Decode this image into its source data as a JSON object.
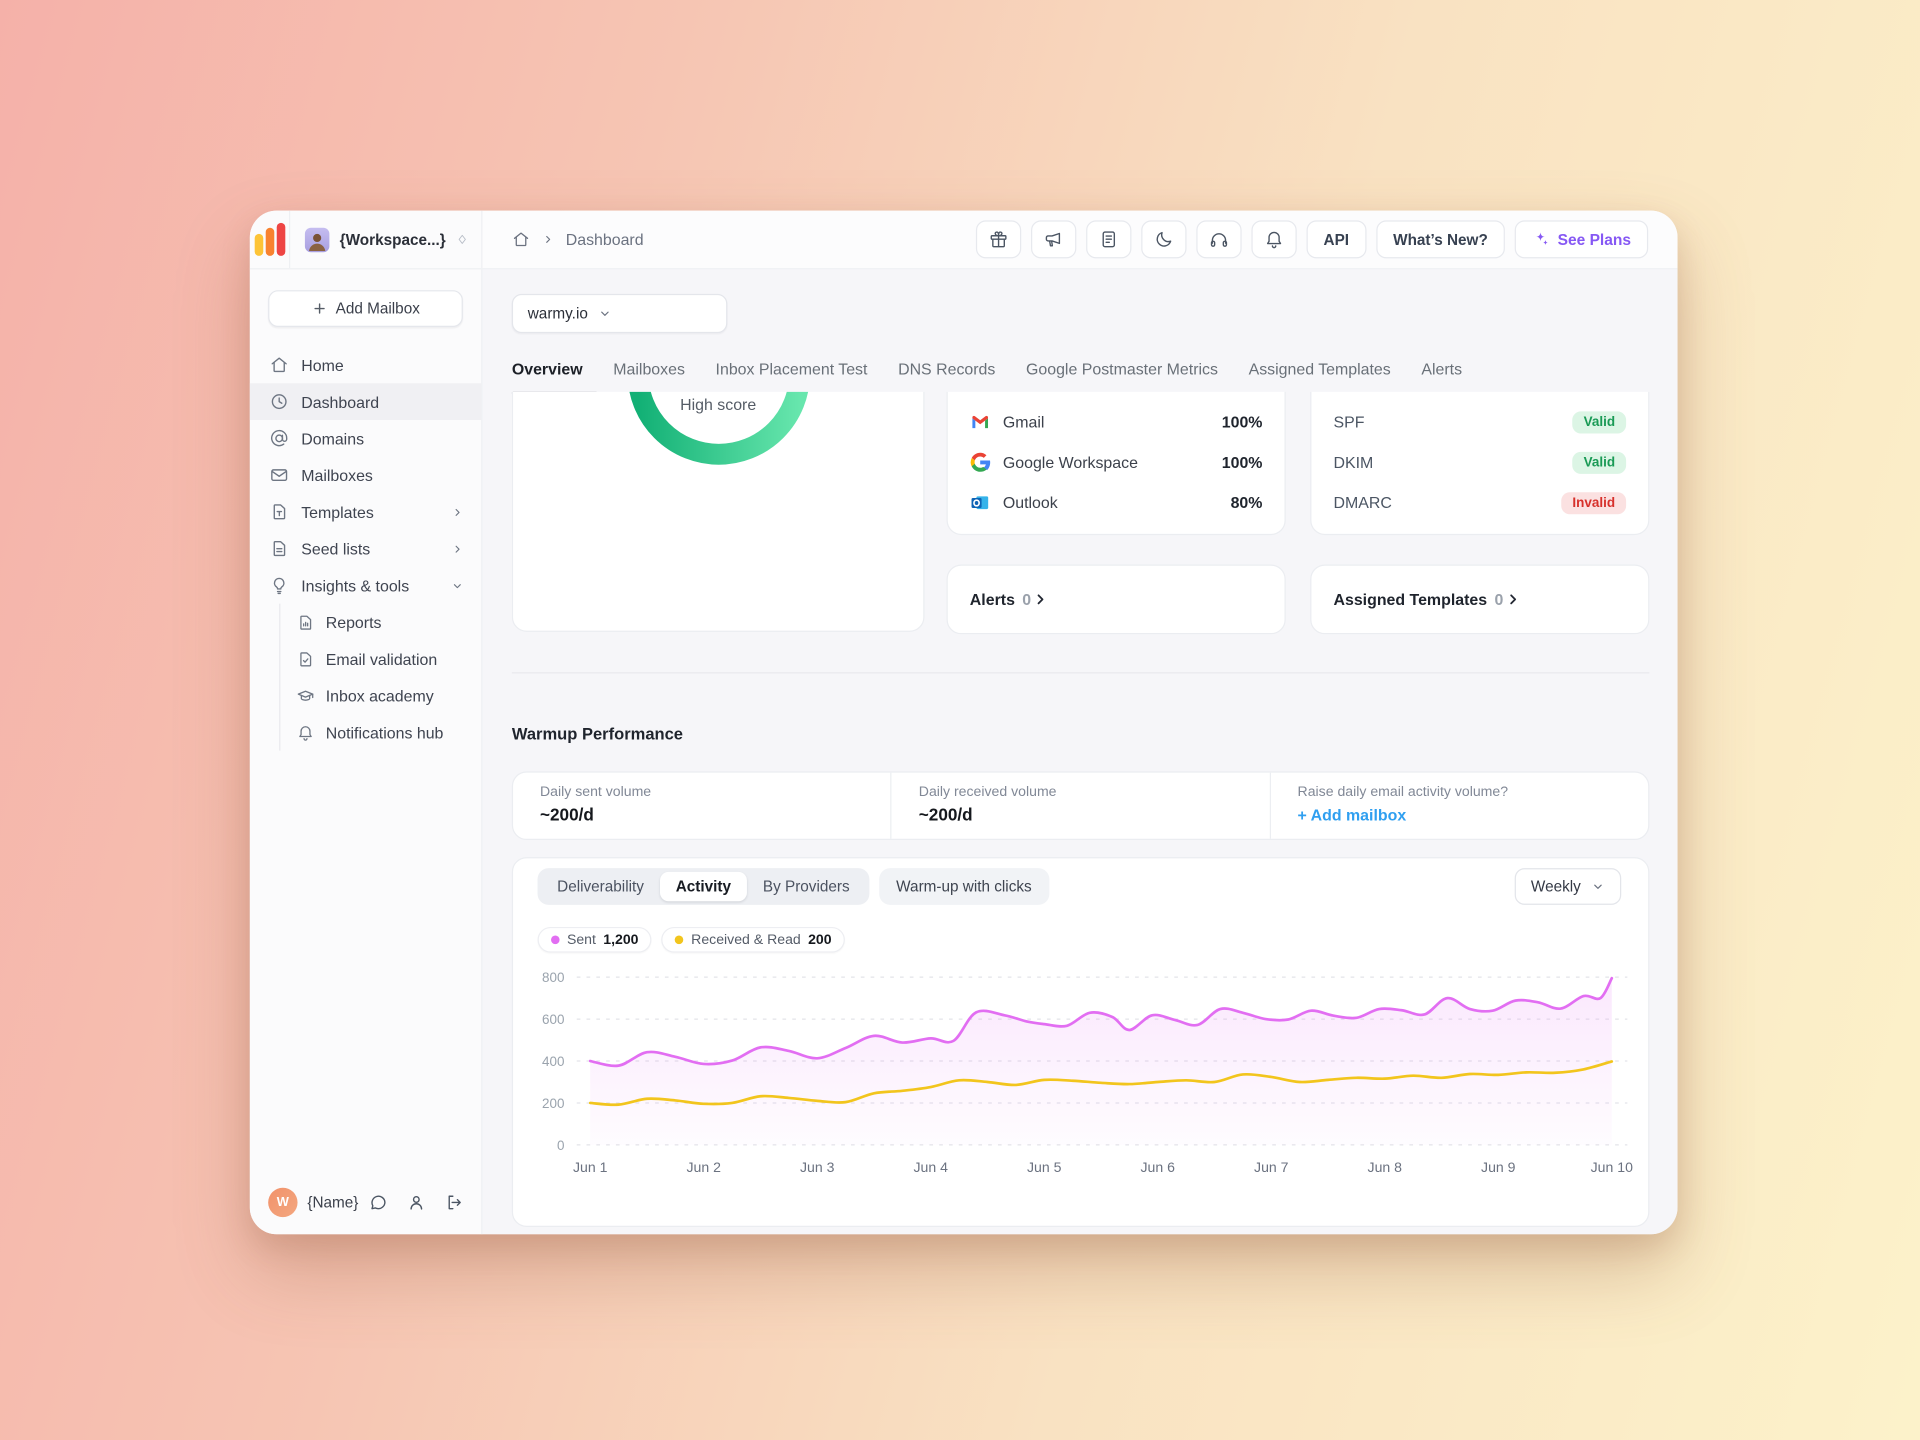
{
  "workspace": {
    "label": "{Workspace...}"
  },
  "header": {
    "breadcrumb_current": "Dashboard",
    "icon_buttons": [
      {
        "icon": "gift-icon",
        "name": "rewards-button"
      },
      {
        "icon": "megaphone-icon",
        "name": "announcements-button"
      },
      {
        "icon": "docs-icon",
        "name": "documentation-button"
      },
      {
        "icon": "moon-icon",
        "name": "dark-mode-button"
      },
      {
        "icon": "headphones-icon",
        "name": "support-button"
      },
      {
        "icon": "bell-icon",
        "name": "notifications-button"
      }
    ],
    "api_label": "API",
    "whats_new_label": "What’s New?",
    "see_plans_label": "See Plans"
  },
  "sidebar": {
    "add_mailbox_label": "Add Mailbox",
    "items": [
      {
        "label": "Home",
        "icon": "home-icon",
        "active": false,
        "chevron": null
      },
      {
        "label": "Dashboard",
        "icon": "dashboard-icon",
        "active": true,
        "chevron": null
      },
      {
        "label": "Domains",
        "icon": "at-sign-icon",
        "active": false,
        "chevron": null
      },
      {
        "label": "Mailboxes",
        "icon": "envelope-icon",
        "active": false,
        "chevron": null
      },
      {
        "label": "Templates",
        "icon": "template-file-icon",
        "active": false,
        "chevron": "right"
      },
      {
        "label": "Seed lists",
        "icon": "list-file-icon",
        "active": false,
        "chevron": "right"
      },
      {
        "label": "Insights & tools",
        "icon": "lightbulb-icon",
        "active": false,
        "chevron": "down"
      }
    ],
    "sub_items": [
      {
        "label": "Reports",
        "icon": "report-file-icon"
      },
      {
        "label": "Email validation",
        "icon": "check-file-icon"
      },
      {
        "label": "Inbox academy",
        "icon": "graduation-cap-icon"
      },
      {
        "label": "Notifications hub",
        "icon": "bell-icon"
      }
    ],
    "user": {
      "initial": "W",
      "name": "{Name}"
    }
  },
  "main": {
    "domain_select_value": "warmy.io",
    "tabs": [
      "Overview",
      "Mailboxes",
      "Inbox Placement Test",
      "DNS Records",
      "Google Postmaster Metrics",
      "Assigned Templates",
      "Alerts"
    ],
    "active_tab": "Overview",
    "score_label": "High score",
    "providers": [
      {
        "name": "Gmail",
        "icon": "gmail-icon",
        "score": "100%"
      },
      {
        "name": "Google Workspace",
        "icon": "google-icon",
        "score": "100%"
      },
      {
        "name": "Outlook",
        "icon": "outlook-icon",
        "score": "80%"
      }
    ],
    "dns_records": [
      {
        "name": "SPF",
        "status": "Valid"
      },
      {
        "name": "DKIM",
        "status": "Valid"
      },
      {
        "name": "DMARC",
        "status": "Invalid"
      }
    ],
    "alerts_card": {
      "title": "Alerts",
      "count": "0"
    },
    "templates_card": {
      "title": "Assigned Templates",
      "count": "0"
    },
    "warmup": {
      "title": "Warmup Performance",
      "stats": [
        {
          "label": "Daily sent volume",
          "value": "~200/d",
          "link": null
        },
        {
          "label": "Daily received volume",
          "value": "~200/d",
          "link": null
        },
        {
          "label": "Raise daily email activity volume?",
          "value": null,
          "link": "+ Add mailbox"
        }
      ],
      "chart_tabs": [
        "Deliverability",
        "Activity",
        "By Providers"
      ],
      "active_chart_tab": "Activity",
      "extra_chart_tab": "Warm-up with clicks",
      "period": "Weekly",
      "legend": [
        {
          "label": "Sent",
          "value": "1,200",
          "color": "#E26EF2"
        },
        {
          "label": "Received & Read",
          "value": "200",
          "color": "#F2C51D"
        }
      ]
    }
  },
  "colors": {
    "accent_purple": "#8658F4",
    "link_blue": "#2F9FF0",
    "valid_green": "#199A55",
    "invalid_red": "#D7302B",
    "gauge_green_dark": "#12B075",
    "gauge_green_light": "#67E6AD",
    "sent_pink": "#E26EF2",
    "received_yellow": "#F2C51D",
    "logo_yellow": "#FDC437",
    "logo_orange": "#F8822F",
    "logo_red": "#EE4544"
  },
  "chart_data": {
    "type": "line",
    "x_tick_labels": [
      "Jun 1",
      "Jun 2",
      "Jun 3",
      "Jun 4",
      "Jun 5",
      "Jun 6",
      "Jun 7",
      "Jun 8",
      "Jun 9",
      "Jun 10"
    ],
    "y_ticks": [
      0,
      200,
      400,
      600,
      800
    ],
    "ylim": [
      0,
      800
    ],
    "xlim_days": [
      1,
      10
    ],
    "grid": "horizontal-dashed",
    "legend_position": "top-left",
    "series": [
      {
        "name": "Sent",
        "color": "#E26EF2",
        "fill": true,
        "points": [
          [
            1,
            400
          ],
          [
            1.25,
            378
          ],
          [
            1.5,
            442
          ],
          [
            1.75,
            420
          ],
          [
            2,
            386
          ],
          [
            2.25,
            402
          ],
          [
            2.5,
            465
          ],
          [
            2.75,
            448
          ],
          [
            3,
            413
          ],
          [
            3.25,
            462
          ],
          [
            3.5,
            520
          ],
          [
            3.75,
            488
          ],
          [
            4,
            508
          ],
          [
            4.2,
            496
          ],
          [
            4.4,
            632
          ],
          [
            4.65,
            618
          ],
          [
            4.85,
            588
          ],
          [
            5,
            576
          ],
          [
            5.2,
            568
          ],
          [
            5.4,
            630
          ],
          [
            5.6,
            610
          ],
          [
            5.75,
            548
          ],
          [
            5.95,
            618
          ],
          [
            6.15,
            596
          ],
          [
            6.35,
            572
          ],
          [
            6.55,
            648
          ],
          [
            6.75,
            630
          ],
          [
            6.95,
            600
          ],
          [
            7.15,
            598
          ],
          [
            7.35,
            640
          ],
          [
            7.55,
            616
          ],
          [
            7.75,
            606
          ],
          [
            7.95,
            648
          ],
          [
            8.15,
            642
          ],
          [
            8.35,
            622
          ],
          [
            8.55,
            700
          ],
          [
            8.75,
            648
          ],
          [
            8.95,
            640
          ],
          [
            9.15,
            688
          ],
          [
            9.35,
            680
          ],
          [
            9.55,
            650
          ],
          [
            9.75,
            710
          ],
          [
            9.9,
            700
          ],
          [
            10,
            795
          ]
        ]
      },
      {
        "name": "Received & Read",
        "color": "#F2C51D",
        "fill": false,
        "points": [
          [
            1,
            200
          ],
          [
            1.25,
            192
          ],
          [
            1.5,
            220
          ],
          [
            1.75,
            212
          ],
          [
            2,
            196
          ],
          [
            2.25,
            200
          ],
          [
            2.5,
            232
          ],
          [
            2.75,
            224
          ],
          [
            3,
            210
          ],
          [
            3.25,
            204
          ],
          [
            3.5,
            246
          ],
          [
            3.75,
            258
          ],
          [
            4,
            276
          ],
          [
            4.25,
            308
          ],
          [
            4.5,
            300
          ],
          [
            4.75,
            286
          ],
          [
            5,
            310
          ],
          [
            5.25,
            306
          ],
          [
            5.5,
            296
          ],
          [
            5.75,
            290
          ],
          [
            6,
            300
          ],
          [
            6.25,
            308
          ],
          [
            6.5,
            300
          ],
          [
            6.75,
            336
          ],
          [
            7,
            324
          ],
          [
            7.25,
            300
          ],
          [
            7.5,
            310
          ],
          [
            7.75,
            320
          ],
          [
            8,
            316
          ],
          [
            8.25,
            330
          ],
          [
            8.5,
            320
          ],
          [
            8.75,
            338
          ],
          [
            9,
            334
          ],
          [
            9.25,
            346
          ],
          [
            9.5,
            344
          ],
          [
            9.75,
            360
          ],
          [
            10,
            398
          ]
        ]
      }
    ]
  }
}
